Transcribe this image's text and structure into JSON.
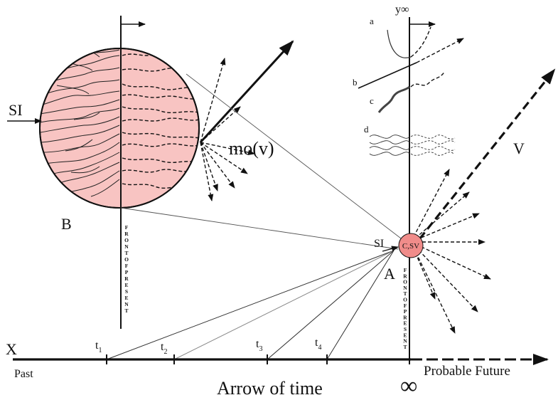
{
  "labels": {
    "x": "X",
    "past": "Past",
    "probable_future": "Probable Future",
    "arrow_of_time": "Arrow of time",
    "infinity": "∞",
    "b": "B",
    "a": "A",
    "si_left": "SI",
    "si_right": "SI",
    "mov": "mo(v)",
    "v": "V",
    "csv": "C,SV",
    "y_inf": "y∞",
    "curve_a": "a",
    "curve_b": "b",
    "curve_c": "c",
    "curve_d": "d",
    "front_of_present": "FRONT OF PRESENT"
  },
  "ticks": [
    {
      "t": "t",
      "sub": "1"
    },
    {
      "t": "t",
      "sub": "2"
    },
    {
      "t": "t",
      "sub": "3"
    },
    {
      "t": "t",
      "sub": "4"
    }
  ],
  "colors": {
    "circle_fill": "#f8c4c2",
    "node_fill": "#f08c8a",
    "ink": "#111111"
  }
}
